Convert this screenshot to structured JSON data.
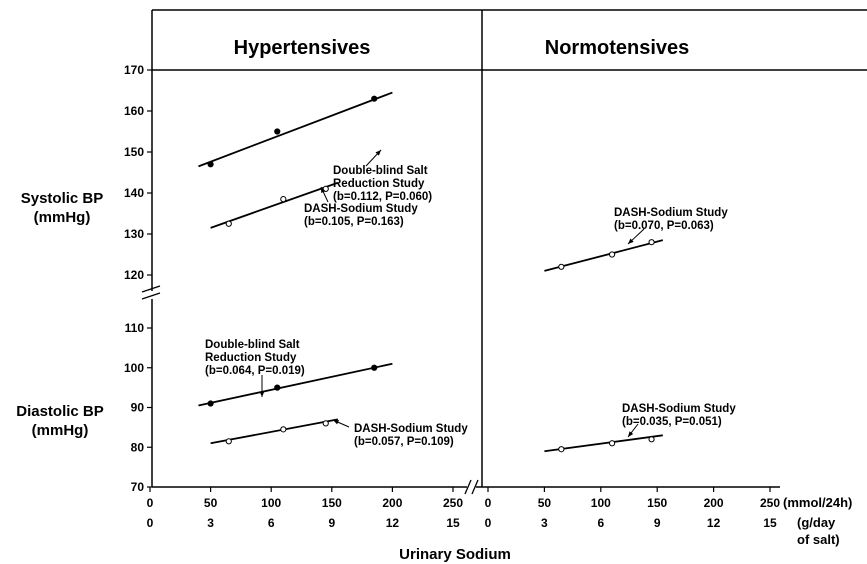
{
  "chart_data": {
    "type": "scatter",
    "xlabel": "Urinary Sodium",
    "x_unit_primary": "(mmol/24h)",
    "x_unit_secondary": "(g/day of salt)",
    "x_unit_secondary_lines": [
      "(g/day",
      "of salt)"
    ],
    "ylabel_systolic_lines": [
      "Systolic BP",
      "(mmHg)"
    ],
    "ylabel_diastolic_lines": [
      "Diastolic BP",
      "(mmHg)"
    ],
    "x_ticks_mmol": [
      0,
      50,
      100,
      150,
      200,
      250
    ],
    "x_ticks_salt": [
      0,
      3,
      6,
      9,
      12,
      15
    ],
    "xlim": [
      0,
      250
    ],
    "y_ticks_upper": [
      120,
      130,
      140,
      150,
      160,
      170
    ],
    "y_ticks_lower": [
      70,
      80,
      90,
      100,
      110
    ],
    "axis_break": true,
    "panels": [
      {
        "title": "Hypertensives",
        "series": [
          {
            "label_lines": [
              "Double-blind Salt",
              "Reduction Study",
              "(b=0.112, P=0.060)"
            ],
            "bp": "systolic",
            "marker": "filled",
            "x": [
              50,
              105,
              185
            ],
            "y": [
              147,
              155,
              163
            ],
            "fit_x": [
              40,
              200
            ],
            "fit_y": [
              146.5,
              164.5
            ]
          },
          {
            "label_lines": [
              "DASH-Sodium Study",
              "(b=0.105, P=0.163)"
            ],
            "bp": "systolic",
            "marker": "open",
            "x": [
              65,
              110,
              145
            ],
            "y": [
              132.5,
              138.5,
              141
            ],
            "fit_x": [
              50,
              155
            ],
            "fit_y": [
              131.5,
              142.5
            ]
          },
          {
            "label_lines": [
              "Double-blind Salt",
              "Reduction Study",
              "(b=0.064, P=0.019)"
            ],
            "bp": "diastolic",
            "marker": "filled",
            "x": [
              50,
              105,
              185
            ],
            "y": [
              91,
              95,
              100
            ],
            "fit_x": [
              40,
              200
            ],
            "fit_y": [
              90.5,
              101
            ]
          },
          {
            "label_lines": [
              "DASH-Sodium Study",
              "(b=0.057, P=0.109)"
            ],
            "bp": "diastolic",
            "marker": "open",
            "x": [
              65,
              110,
              145
            ],
            "y": [
              81.5,
              84.5,
              86
            ],
            "fit_x": [
              50,
              155
            ],
            "fit_y": [
              81,
              87
            ]
          }
        ]
      },
      {
        "title": "Normotensives",
        "series": [
          {
            "label_lines": [
              "DASH-Sodium Study",
              "(b=0.070, P=0.063)"
            ],
            "bp": "systolic",
            "marker": "open",
            "x": [
              65,
              110,
              145
            ],
            "y": [
              122,
              125,
              128
            ],
            "fit_x": [
              50,
              155
            ],
            "fit_y": [
              121,
              128.5
            ]
          },
          {
            "label_lines": [
              "DASH-Sodium Study",
              "(b=0.035, P=0.051)"
            ],
            "bp": "diastolic",
            "marker": "open",
            "x": [
              65,
              110,
              145
            ],
            "y": [
              79.5,
              81,
              82
            ],
            "fit_x": [
              50,
              155
            ],
            "fit_y": [
              79,
              83
            ]
          }
        ]
      }
    ]
  }
}
